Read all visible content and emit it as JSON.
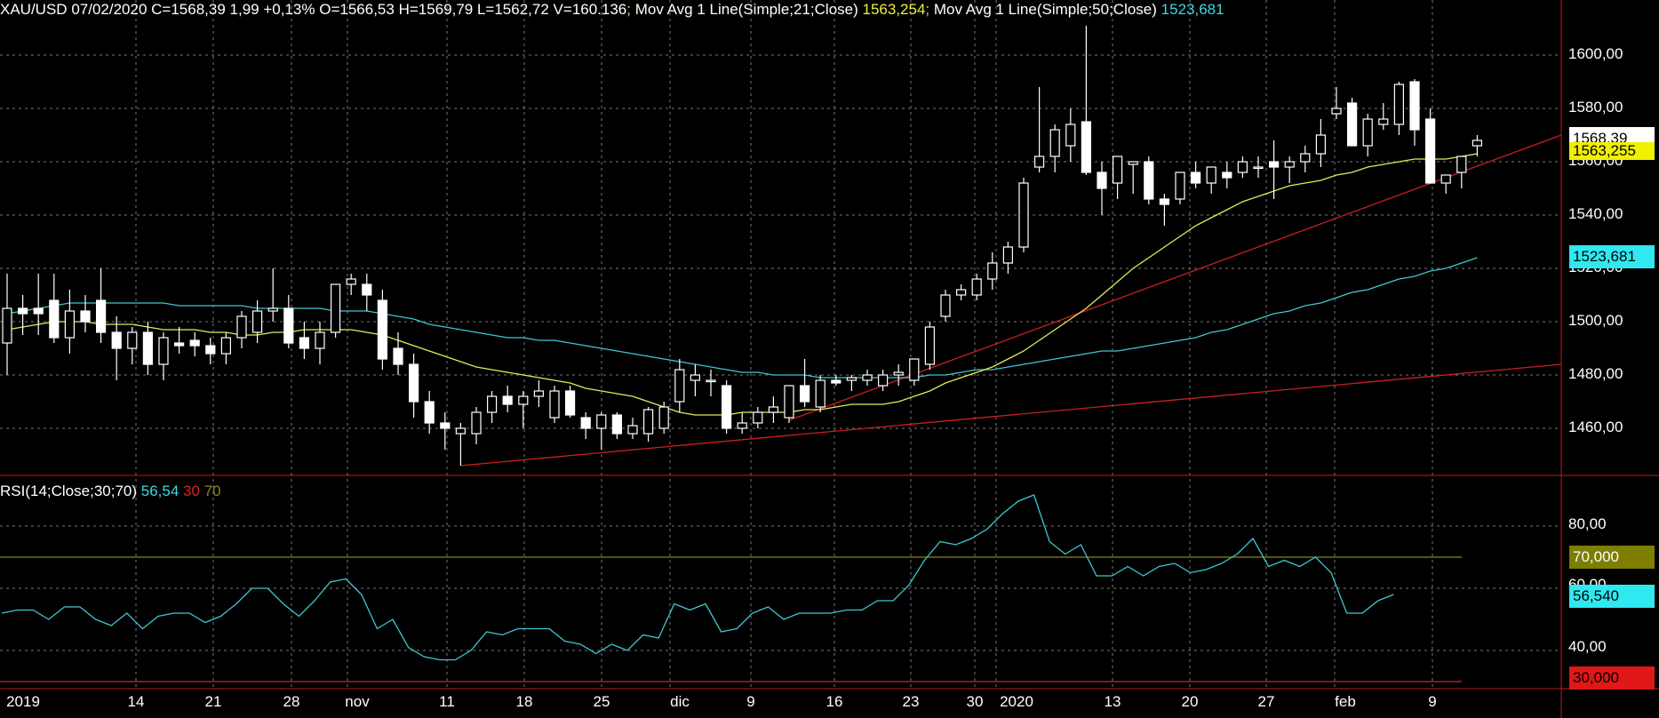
{
  "header": {
    "symbol": "XAU/USD",
    "date": "07/02/2020",
    "close": "C=1568,39",
    "change": "1,99",
    "change_pct": "+0,13%",
    "open": "O=1566,53",
    "high": "H=1569,79",
    "low": "L=1562,72",
    "volume": "V=160.136",
    "ma21_label": "Mov Avg 1 Line(Simple;21;Close)",
    "ma21_value": "1563,254",
    "ma50_label": "Mov Avg 1 Line(Simple;50;Close)",
    "ma50_value": "1523,681"
  },
  "rsi_header": {
    "label": "RSI(14;Close;30;70)",
    "value": "56,54",
    "lower": "30",
    "upper": "70"
  },
  "price_axis": [
    "1600,00",
    "1580,00",
    "1560,00",
    "1540,00",
    "1520,00",
    "1500,00",
    "1480,00",
    "1460,00"
  ],
  "rsi_axis": [
    "80,00",
    "60,00",
    "40,00"
  ],
  "x_axis": [
    "2019",
    "14",
    "21",
    "28",
    "nov",
    "11",
    "18",
    "25",
    "dic",
    "9",
    "16",
    "23",
    "30",
    "2020",
    "13",
    "20",
    "27",
    "feb",
    "9"
  ],
  "tags": {
    "last_price": "1568,39",
    "ma21": "1563,255",
    "ma50": "1523,681",
    "rsi_upper": "70,000",
    "rsi_value": "56,540",
    "rsi_lower": "30,000"
  },
  "colors": {
    "background": "#000000",
    "candle_up": "#000000",
    "candle_down": "#ffffff",
    "ma21": "#e8e85a",
    "ma50": "#3fc6d0",
    "trendline": "#cc1f1f",
    "rsi": "#3fc6d0",
    "rsi_upper_line": "#8a8a00",
    "rsi_lower_line": "#e02020",
    "grid": "#777777"
  },
  "chart_data": [
    {
      "type": "candlestick",
      "title": "XAU/USD",
      "ylim": [
        1442,
        1616
      ],
      "candles": [
        {
          "o": 1492,
          "h": 1518,
          "l": 1480,
          "c": 1505
        },
        {
          "o": 1505,
          "h": 1510,
          "l": 1495,
          "c": 1503
        },
        {
          "o": 1505,
          "h": 1518,
          "l": 1495,
          "c": 1503
        },
        {
          "o": 1508,
          "h": 1518,
          "l": 1492,
          "c": 1494
        },
        {
          "o": 1494,
          "h": 1512,
          "l": 1488,
          "c": 1504
        },
        {
          "o": 1504,
          "h": 1510,
          "l": 1496,
          "c": 1500
        },
        {
          "o": 1508,
          "h": 1520,
          "l": 1492,
          "c": 1496
        },
        {
          "o": 1496,
          "h": 1502,
          "l": 1478,
          "c": 1490
        },
        {
          "o": 1490,
          "h": 1498,
          "l": 1484,
          "c": 1496
        },
        {
          "o": 1496,
          "h": 1500,
          "l": 1480,
          "c": 1484
        },
        {
          "o": 1484,
          "h": 1496,
          "l": 1478,
          "c": 1494
        },
        {
          "o": 1492,
          "h": 1498,
          "l": 1488,
          "c": 1491
        },
        {
          "o": 1493,
          "h": 1496,
          "l": 1487,
          "c": 1491
        },
        {
          "o": 1491,
          "h": 1494,
          "l": 1484,
          "c": 1488
        },
        {
          "o": 1488,
          "h": 1496,
          "l": 1484,
          "c": 1494
        },
        {
          "o": 1494,
          "h": 1504,
          "l": 1490,
          "c": 1502
        },
        {
          "o": 1496,
          "h": 1508,
          "l": 1492,
          "c": 1504
        },
        {
          "o": 1504,
          "h": 1520,
          "l": 1500,
          "c": 1505
        },
        {
          "o": 1505,
          "h": 1510,
          "l": 1490,
          "c": 1492
        },
        {
          "o": 1494,
          "h": 1500,
          "l": 1486,
          "c": 1490
        },
        {
          "o": 1490,
          "h": 1500,
          "l": 1484,
          "c": 1496
        },
        {
          "o": 1496,
          "h": 1514,
          "l": 1494,
          "c": 1514
        },
        {
          "o": 1514,
          "h": 1518,
          "l": 1510,
          "c": 1516
        },
        {
          "o": 1514,
          "h": 1518,
          "l": 1504,
          "c": 1510
        },
        {
          "o": 1508,
          "h": 1512,
          "l": 1482,
          "c": 1486
        },
        {
          "o": 1490,
          "h": 1496,
          "l": 1480,
          "c": 1484
        },
        {
          "o": 1484,
          "h": 1488,
          "l": 1464,
          "c": 1470
        },
        {
          "o": 1470,
          "h": 1474,
          "l": 1458,
          "c": 1462
        },
        {
          "o": 1462,
          "h": 1466,
          "l": 1452,
          "c": 1460
        },
        {
          "o": 1458,
          "h": 1462,
          "l": 1446,
          "c": 1460
        },
        {
          "o": 1458,
          "h": 1468,
          "l": 1454,
          "c": 1466
        },
        {
          "o": 1466,
          "h": 1474,
          "l": 1462,
          "c": 1472
        },
        {
          "o": 1472,
          "h": 1476,
          "l": 1466,
          "c": 1469
        },
        {
          "o": 1469,
          "h": 1474,
          "l": 1460,
          "c": 1472
        },
        {
          "o": 1472,
          "h": 1478,
          "l": 1468,
          "c": 1474
        },
        {
          "o": 1464,
          "h": 1476,
          "l": 1462,
          "c": 1474
        },
        {
          "o": 1474,
          "h": 1476,
          "l": 1464,
          "c": 1465
        },
        {
          "o": 1464,
          "h": 1466,
          "l": 1456,
          "c": 1460
        },
        {
          "o": 1460,
          "h": 1466,
          "l": 1452,
          "c": 1465
        },
        {
          "o": 1465,
          "h": 1466,
          "l": 1456,
          "c": 1458
        },
        {
          "o": 1458,
          "h": 1464,
          "l": 1456,
          "c": 1461
        },
        {
          "o": 1458,
          "h": 1468,
          "l": 1455,
          "c": 1467
        },
        {
          "o": 1460,
          "h": 1470,
          "l": 1458,
          "c": 1468
        },
        {
          "o": 1470,
          "h": 1486,
          "l": 1466,
          "c": 1482
        },
        {
          "o": 1478,
          "h": 1484,
          "l": 1472,
          "c": 1480
        },
        {
          "o": 1478,
          "h": 1482,
          "l": 1472,
          "c": 1478
        },
        {
          "o": 1476,
          "h": 1478,
          "l": 1458,
          "c": 1460
        },
        {
          "o": 1460,
          "h": 1466,
          "l": 1458,
          "c": 1462
        },
        {
          "o": 1462,
          "h": 1468,
          "l": 1460,
          "c": 1466
        },
        {
          "o": 1466,
          "h": 1472,
          "l": 1462,
          "c": 1468
        },
        {
          "o": 1464,
          "h": 1476,
          "l": 1462,
          "c": 1476
        },
        {
          "o": 1476,
          "h": 1486,
          "l": 1468,
          "c": 1470
        },
        {
          "o": 1468,
          "h": 1480,
          "l": 1466,
          "c": 1478
        },
        {
          "o": 1478,
          "h": 1480,
          "l": 1476,
          "c": 1477
        },
        {
          "o": 1478,
          "h": 1480,
          "l": 1474,
          "c": 1479
        },
        {
          "o": 1478,
          "h": 1482,
          "l": 1476,
          "c": 1480
        },
        {
          "o": 1476,
          "h": 1482,
          "l": 1474,
          "c": 1480
        },
        {
          "o": 1480,
          "h": 1484,
          "l": 1476,
          "c": 1481
        },
        {
          "o": 1478,
          "h": 1486,
          "l": 1476,
          "c": 1486
        },
        {
          "o": 1484,
          "h": 1500,
          "l": 1482,
          "c": 1498
        },
        {
          "o": 1502,
          "h": 1512,
          "l": 1500,
          "c": 1510
        },
        {
          "o": 1510,
          "h": 1514,
          "l": 1508,
          "c": 1512
        },
        {
          "o": 1510,
          "h": 1518,
          "l": 1508,
          "c": 1516
        },
        {
          "o": 1516,
          "h": 1526,
          "l": 1512,
          "c": 1522
        },
        {
          "o": 1522,
          "h": 1530,
          "l": 1518,
          "c": 1528
        },
        {
          "o": 1528,
          "h": 1554,
          "l": 1526,
          "c": 1552
        },
        {
          "o": 1558,
          "h": 1588,
          "l": 1556,
          "c": 1562
        },
        {
          "o": 1562,
          "h": 1574,
          "l": 1556,
          "c": 1572
        },
        {
          "o": 1566,
          "h": 1580,
          "l": 1560,
          "c": 1574
        },
        {
          "o": 1575,
          "h": 1611,
          "l": 1555,
          "c": 1556
        },
        {
          "o": 1556,
          "h": 1560,
          "l": 1540,
          "c": 1550
        },
        {
          "o": 1552,
          "h": 1562,
          "l": 1546,
          "c": 1562
        },
        {
          "o": 1559,
          "h": 1560,
          "l": 1548,
          "c": 1560
        },
        {
          "o": 1560,
          "h": 1562,
          "l": 1544,
          "c": 1546
        },
        {
          "o": 1546,
          "h": 1548,
          "l": 1536,
          "c": 1544
        },
        {
          "o": 1546,
          "h": 1556,
          "l": 1544,
          "c": 1556
        },
        {
          "o": 1556,
          "h": 1560,
          "l": 1550,
          "c": 1552
        },
        {
          "o": 1552,
          "h": 1558,
          "l": 1548,
          "c": 1558
        },
        {
          "o": 1556,
          "h": 1560,
          "l": 1550,
          "c": 1554
        },
        {
          "o": 1556,
          "h": 1562,
          "l": 1554,
          "c": 1560
        },
        {
          "o": 1558,
          "h": 1562,
          "l": 1554,
          "c": 1558
        },
        {
          "o": 1560,
          "h": 1568,
          "l": 1546,
          "c": 1558
        },
        {
          "o": 1558,
          "h": 1562,
          "l": 1552,
          "c": 1560
        },
        {
          "o": 1560,
          "h": 1566,
          "l": 1556,
          "c": 1563
        },
        {
          "o": 1563,
          "h": 1576,
          "l": 1558,
          "c": 1570
        },
        {
          "o": 1578,
          "h": 1588,
          "l": 1576,
          "c": 1580
        },
        {
          "o": 1582,
          "h": 1584,
          "l": 1566,
          "c": 1566
        },
        {
          "o": 1566,
          "h": 1578,
          "l": 1562,
          "c": 1576
        },
        {
          "o": 1574,
          "h": 1582,
          "l": 1572,
          "c": 1576
        },
        {
          "o": 1574,
          "h": 1590,
          "l": 1570,
          "c": 1589
        },
        {
          "o": 1590,
          "h": 1591,
          "l": 1566,
          "c": 1572
        },
        {
          "o": 1576,
          "h": 1580,
          "l": 1552,
          "c": 1552
        },
        {
          "o": 1552,
          "h": 1554,
          "l": 1548,
          "c": 1555
        },
        {
          "o": 1556,
          "h": 1562,
          "l": 1550,
          "c": 1562
        },
        {
          "o": 1566,
          "h": 1570,
          "l": 1562,
          "c": 1568
        }
      ],
      "ma21": [
        1497,
        1498,
        1499,
        1500,
        1500,
        1500,
        1499,
        1499,
        1499,
        1498,
        1497,
        1497,
        1497,
        1496,
        1496,
        1495,
        1495,
        1496,
        1496,
        1497,
        1497,
        1497,
        1497,
        1496,
        1495,
        1493,
        1491,
        1489,
        1487,
        1485,
        1483,
        1482,
        1481,
        1480,
        1479,
        1478,
        1477,
        1475,
        1474,
        1473,
        1472,
        1470,
        1468,
        1466,
        1465,
        1465,
        1465,
        1466,
        1466,
        1466,
        1466,
        1467,
        1467,
        1468,
        1469,
        1469,
        1469,
        1470,
        1472,
        1474,
        1477,
        1479,
        1481,
        1483,
        1486,
        1489,
        1493,
        1497,
        1501,
        1505,
        1510,
        1515,
        1520,
        1524,
        1528,
        1532,
        1536,
        1539,
        1542,
        1545,
        1547,
        1549,
        1551,
        1552,
        1553,
        1555,
        1556,
        1558,
        1559,
        1560,
        1561,
        1561,
        1561,
        1562,
        1563
      ],
      "ma50": [
        1503,
        1504,
        1505,
        1506,
        1507,
        1507,
        1507,
        1507,
        1507,
        1507,
        1507,
        1506,
        1506,
        1506,
        1506,
        1506,
        1505,
        1505,
        1505,
        1505,
        1505,
        1504,
        1504,
        1504,
        1503,
        1502,
        1501,
        1499,
        1498,
        1497,
        1496,
        1495,
        1494,
        1494,
        1493,
        1493,
        1492,
        1491,
        1490,
        1489,
        1488,
        1487,
        1486,
        1485,
        1484,
        1483,
        1482,
        1481,
        1481,
        1480,
        1480,
        1480,
        1479,
        1479,
        1479,
        1479,
        1479,
        1479,
        1479,
        1480,
        1480,
        1481,
        1482,
        1482,
        1483,
        1484,
        1485,
        1486,
        1487,
        1488,
        1489,
        1489,
        1490,
        1491,
        1492,
        1493,
        1494,
        1496,
        1497,
        1499,
        1501,
        1503,
        1504,
        1506,
        1507,
        1509,
        1511,
        1512,
        1514,
        1516,
        1517,
        1519,
        1520,
        1522,
        1524
      ]
    },
    {
      "type": "line",
      "title": "RSI(14;Close;30;70)",
      "ylim": [
        26,
        92
      ],
      "levels": [
        70,
        30
      ],
      "values": [
        52,
        53,
        53,
        50,
        54,
        54,
        50,
        48,
        52,
        47,
        51,
        52,
        52,
        49,
        51,
        55,
        60,
        60,
        55,
        51,
        56,
        62,
        63,
        58,
        47,
        50,
        41,
        38,
        37,
        37,
        40,
        46,
        45,
        47,
        47,
        47,
        43,
        42,
        39,
        42,
        40,
        45,
        44,
        55,
        53,
        55,
        46,
        47,
        52,
        54,
        50,
        52,
        52,
        52,
        53,
        53,
        56,
        56,
        61,
        69,
        75,
        74,
        76,
        79,
        84,
        88,
        90,
        75,
        71,
        74,
        64,
        64,
        67,
        64,
        67,
        68,
        65,
        66,
        68,
        71,
        76,
        67,
        69,
        67,
        70,
        65,
        52,
        52,
        56,
        58
      ]
    }
  ]
}
